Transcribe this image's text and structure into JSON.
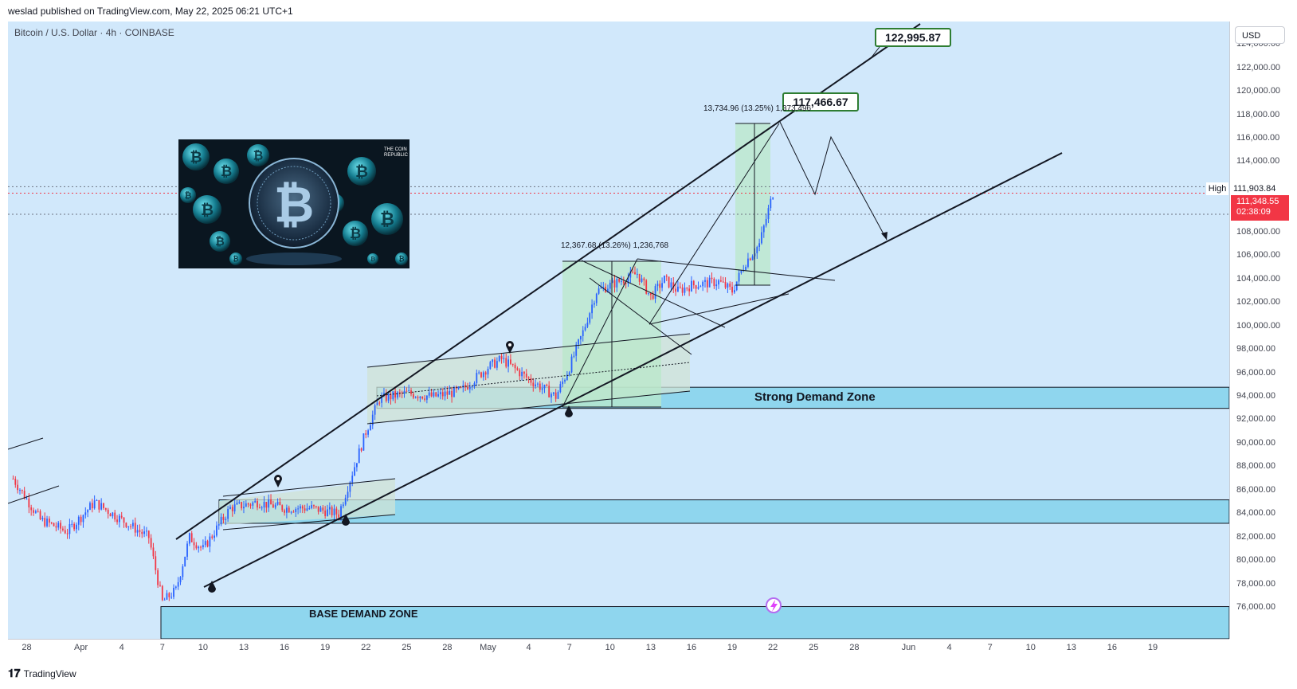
{
  "header": {
    "publisher_line": "weslad published on TradingView.com, May 22, 2025 06:21 UTC+1"
  },
  "chart": {
    "symbol_line": "Bitcoin / U.S. Dollar · 4h · COINBASE",
    "currency": "USD",
    "high_label": "High",
    "high_value": "111,903.84",
    "last_price": "111,348.55",
    "countdown": "02:38:09",
    "y_ticks": [
      "124,000.00",
      "122,000.00",
      "120,000.00",
      "118,000.00",
      "116,000.00",
      "114,000.00",
      "112,000.00",
      "110,000.00",
      "108,000.00",
      "106,000.00",
      "104,000.00",
      "102,000.00",
      "100,000.00",
      "98,000.00",
      "96,000.00",
      "94,000.00",
      "92,000.00",
      "90,000.00",
      "88,000.00",
      "86,000.00",
      "84,000.00",
      "82,000.00",
      "80,000.00",
      "78,000.00",
      "76,000.00"
    ],
    "x_ticks": [
      "28",
      "Apr",
      "4",
      "7",
      "10",
      "13",
      "16",
      "19",
      "22",
      "25",
      "28",
      "May",
      "4",
      "7",
      "10",
      "13",
      "16",
      "19",
      "22",
      "25",
      "28",
      "Jun",
      "4",
      "7",
      "10",
      "13",
      "16",
      "19"
    ],
    "annotations": {
      "target_1": "122,995.87",
      "target_2": "117,466.67",
      "measure_1": "13,734.96 (13.25%) 1,373,496",
      "measure_2": "12,367.68 (13.26%) 1,236,768",
      "zone_strong": "Strong Demand Zone",
      "zone_base": "BASE DEMAND ZONE"
    },
    "thumbnail": {
      "brand": "THE COIN REPUBLIC"
    }
  },
  "footer": {
    "brand": "TradingView"
  },
  "colors": {
    "up": "#2962ff",
    "down": "#f23645",
    "background": "#d1e8fb",
    "zone": "#8fd6ee",
    "measure_fill": "#b9e8c9"
  },
  "chart_data": {
    "type": "candlestick",
    "title": "Bitcoin / U.S. Dollar · 4h · COINBASE",
    "timeframe": "4h",
    "x_range": [
      "2025-03-27",
      "2025-06-20"
    ],
    "ylim": [
      75000,
      125000
    ],
    "close_path": [
      [
        "2025-03-27",
        87000
      ],
      [
        "2025-03-29",
        83500
      ],
      [
        "2025-03-31",
        82500
      ],
      [
        "2025-04-02",
        85000
      ],
      [
        "2025-04-04",
        83500
      ],
      [
        "2025-04-06",
        82000
      ],
      [
        "2025-04-07",
        76500
      ],
      [
        "2025-04-08",
        77500
      ],
      [
        "2025-04-09",
        82000
      ],
      [
        "2025-04-10",
        81000
      ],
      [
        "2025-04-12",
        84500
      ],
      [
        "2025-04-14",
        85000
      ],
      [
        "2025-04-16",
        84500
      ],
      [
        "2025-04-18",
        84500
      ],
      [
        "2025-04-20",
        84000
      ],
      [
        "2025-04-21",
        87500
      ],
      [
        "2025-04-22",
        91000
      ],
      [
        "2025-04-23",
        93800
      ],
      [
        "2025-04-25",
        94300
      ],
      [
        "2025-04-27",
        94000
      ],
      [
        "2025-04-29",
        94500
      ],
      [
        "2025-05-01",
        96500
      ],
      [
        "2025-05-02",
        97200
      ],
      [
        "2025-05-04",
        95500
      ],
      [
        "2025-05-06",
        94000
      ],
      [
        "2025-05-07",
        96500
      ],
      [
        "2025-05-08",
        99500
      ],
      [
        "2025-05-09",
        103000
      ],
      [
        "2025-05-11",
        104000
      ],
      [
        "2025-05-12",
        104500
      ],
      [
        "2025-05-13",
        102500
      ],
      [
        "2025-05-14",
        104000
      ],
      [
        "2025-05-15",
        103000
      ],
      [
        "2025-05-16",
        103500
      ],
      [
        "2025-05-18",
        103800
      ],
      [
        "2025-05-19",
        103000
      ],
      [
        "2025-05-20",
        105500
      ],
      [
        "2025-05-21",
        107000
      ],
      [
        "2025-05-22",
        111348.55
      ]
    ],
    "zones": [
      {
        "label": "Strong Demand Zone",
        "range": [
          93000,
          94800
        ]
      },
      {
        "label": "",
        "range": [
          83200,
          85200
        ]
      },
      {
        "label": "BASE DEMAND ZONE",
        "range": [
          75000,
          76100
        ]
      }
    ],
    "targets": [
      122995.87,
      117466.67
    ],
    "grid": false
  }
}
